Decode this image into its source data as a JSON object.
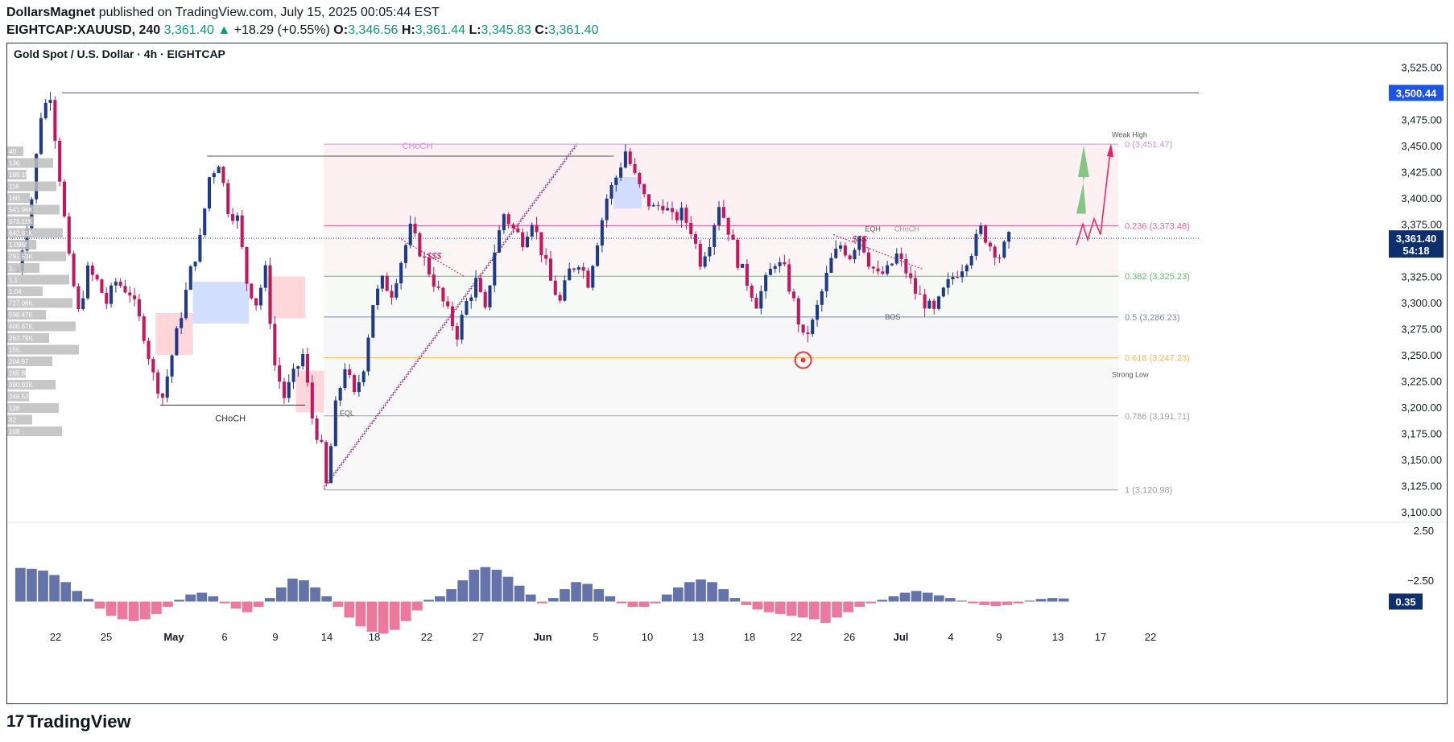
{
  "header": {
    "author": "DollarsMagnet",
    "published": "published on TradingView.com, July 15, 2025 00:05:44 EST",
    "symbol_interval": "EIGHTCAP:XAUUSD, 240",
    "last": "3,361.40",
    "change": "+18.29 (+0.55%)",
    "o_label": "O:",
    "o": "3,346.56",
    "h_label": "H:",
    "h": "3,361.44",
    "l_label": "L:",
    "l": "3,345.83",
    "c_label": "C:",
    "c": "3,361.40"
  },
  "footer": {
    "logo_text": "TradingView"
  },
  "colors": {
    "up": "#1e3a8a",
    "down": "#c2185b",
    "accent": "#1e53e5",
    "fib_border": "#888888"
  },
  "chart_data": {
    "type": "candlestick",
    "title": "Gold Spot / U.S. Dollar · 4h · EIGHTCAP",
    "ylim": [
      3090,
      3540
    ],
    "y_ticks": [
      3100,
      3125,
      3150,
      3175,
      3200,
      3225,
      3250,
      3275,
      3300,
      3325,
      3350,
      3375,
      3400,
      3425,
      3450,
      3475,
      3500,
      3525
    ],
    "y_tick_labels": [
      "3,100.00",
      "3,125.00",
      "3,150.00",
      "3,175.00",
      "3,200.00",
      "3,225.00",
      "3,250.00",
      "3,275.00",
      "3,300.00",
      "3,325.00",
      "3,350.00",
      "3,375.00",
      "3,400.00",
      "3,425.00",
      "3,450.00",
      "3,475.00",
      "3,500.00",
      "3,525.00"
    ],
    "x_labels": [
      "22",
      "25",
      "May",
      "6",
      "9",
      "14",
      "18",
      "22",
      "27",
      "Jun",
      "5",
      "10",
      "13",
      "18",
      "22",
      "26",
      "Jul",
      "4",
      "9",
      "13",
      "17",
      "22"
    ],
    "price_labels": {
      "high_line": "3,500.44",
      "last": "3,361.40",
      "countdown": "54:18"
    },
    "price_path": [
      [
        0,
        3330
      ],
      [
        3,
        3400
      ],
      [
        5,
        3480
      ],
      [
        7,
        3500
      ],
      [
        9,
        3420
      ],
      [
        11,
        3340
      ],
      [
        13,
        3290
      ],
      [
        15,
        3330
      ],
      [
        17,
        3320
      ],
      [
        19,
        3300
      ],
      [
        21,
        3320
      ],
      [
        24,
        3310
      ],
      [
        27,
        3270
      ],
      [
        29,
        3230
      ],
      [
        31,
        3210
      ],
      [
        33,
        3250
      ],
      [
        35,
        3290
      ],
      [
        37,
        3330
      ],
      [
        39,
        3360
      ],
      [
        41,
        3420
      ],
      [
        43,
        3435
      ],
      [
        45,
        3390
      ],
      [
        47,
        3380
      ],
      [
        49,
        3320
      ],
      [
        51,
        3300
      ],
      [
        53,
        3330
      ],
      [
        55,
        3240
      ],
      [
        57,
        3210
      ],
      [
        59,
        3230
      ],
      [
        61,
        3250
      ],
      [
        63,
        3190
      ],
      [
        65,
        3160
      ],
      [
        66,
        3125
      ],
      [
        68,
        3200
      ],
      [
        70,
        3240
      ],
      [
        72,
        3210
      ],
      [
        74,
        3240
      ],
      [
        76,
        3300
      ],
      [
        78,
        3320
      ],
      [
        80,
        3310
      ],
      [
        82,
        3340
      ],
      [
        84,
        3370
      ],
      [
        86,
        3350
      ],
      [
        88,
        3330
      ],
      [
        90,
        3310
      ],
      [
        92,
        3290
      ],
      [
        94,
        3270
      ],
      [
        96,
        3300
      ],
      [
        98,
        3320
      ],
      [
        100,
        3290
      ],
      [
        102,
        3350
      ],
      [
        104,
        3385
      ],
      [
        106,
        3370
      ],
      [
        108,
        3360
      ],
      [
        110,
        3380
      ],
      [
        112,
        3350
      ],
      [
        114,
        3320
      ],
      [
        116,
        3300
      ],
      [
        118,
        3330
      ],
      [
        120,
        3340
      ],
      [
        122,
        3320
      ],
      [
        124,
        3360
      ],
      [
        126,
        3400
      ],
      [
        128,
        3420
      ],
      [
        130,
        3445
      ],
      [
        132,
        3420
      ],
      [
        134,
        3400
      ],
      [
        136,
        3390
      ],
      [
        138,
        3395
      ],
      [
        140,
        3380
      ],
      [
        142,
        3385
      ],
      [
        144,
        3370
      ],
      [
        146,
        3340
      ],
      [
        148,
        3360
      ],
      [
        150,
        3395
      ],
      [
        152,
        3370
      ],
      [
        154,
        3340
      ],
      [
        156,
        3320
      ],
      [
        158,
        3300
      ],
      [
        160,
        3320
      ],
      [
        162,
        3340
      ],
      [
        164,
        3330
      ],
      [
        166,
        3300
      ],
      [
        168,
        3265
      ],
      [
        170,
        3280
      ],
      [
        172,
        3310
      ],
      [
        174,
        3340
      ],
      [
        176,
        3355
      ],
      [
        178,
        3345
      ],
      [
        180,
        3365
      ],
      [
        182,
        3340
      ],
      [
        184,
        3325
      ],
      [
        186,
        3330
      ],
      [
        188,
        3345
      ],
      [
        190,
        3330
      ],
      [
        192,
        3310
      ],
      [
        194,
        3300
      ],
      [
        196,
        3290
      ],
      [
        198,
        3310
      ],
      [
        200,
        3325
      ],
      [
        202,
        3335
      ],
      [
        204,
        3350
      ],
      [
        206,
        3370
      ],
      [
        208,
        3355
      ],
      [
        210,
        3345
      ],
      [
        212,
        3361
      ]
    ],
    "fib_levels": [
      {
        "ratio": "0",
        "price": 3451.47,
        "label": "0 (3,451.47)",
        "color": "#ce93d8"
      },
      {
        "ratio": "0.236",
        "price": 3373.48,
        "label": "0.236 (3,373.48)",
        "color": "#f06292"
      },
      {
        "ratio": "0.382",
        "price": 3325.23,
        "label": "0.382 (3,325.23)",
        "color": "#66bb6a"
      },
      {
        "ratio": "0.5",
        "price": 3286.23,
        "label": "0.5 (3,286.23)",
        "color": "#7986cb"
      },
      {
        "ratio": "0.618",
        "price": 3247.23,
        "label": "0.618 (3,247.23)",
        "color": "#ffb74d"
      },
      {
        "ratio": "0.786",
        "price": 3191.71,
        "label": "0.786 (3,191.71)",
        "color": "#9e9e9e"
      },
      {
        "ratio": "1",
        "price": 3120.98,
        "label": "1 (3,120.98)",
        "color": "#9e9e9e"
      }
    ],
    "annotations": {
      "choch_top": "CHoCH",
      "choch_low": "CHoCH",
      "choch_right": "CHoCH",
      "weak_high": "Weak High",
      "strong_low": "Strong Low",
      "eqh": "EQH",
      "eql": "EQL",
      "bos": "BOS",
      "liq1": "$$$",
      "liq2": "$$$"
    },
    "volume_profile": [
      "40",
      "136.",
      "189.15",
      "116",
      "160.",
      "541.96K",
      "573.11K",
      "642.61K",
      "1.09M",
      "791.53K",
      "1.",
      "1.1",
      "1.04",
      "727.08K",
      "598.47K",
      "400.67K",
      "263.76K",
      "155.",
      "204.97",
      "265.88K",
      "390.92K",
      "248.52K",
      "126",
      "82",
      "108"
    ],
    "oscillator": {
      "y_ticks": [
        "2.50",
        "−2.50"
      ],
      "last": "0.35",
      "values": [
        3.8,
        3.7,
        3.5,
        3.0,
        2.2,
        1.2,
        0.3,
        -0.8,
        -1.6,
        -2.0,
        -2.2,
        -2.0,
        -1.4,
        -0.6,
        0.2,
        0.8,
        1.0,
        0.6,
        -0.2,
        -0.8,
        -1.2,
        -0.6,
        0.4,
        1.6,
        2.6,
        2.4,
        1.6,
        0.6,
        -0.6,
        -1.8,
        -2.8,
        -3.4,
        -3.6,
        -3.2,
        -2.2,
        -1.0,
        0.2,
        0.6,
        1.4,
        2.4,
        3.6,
        3.9,
        3.6,
        2.8,
        1.8,
        0.8,
        -0.2,
        0.4,
        1.4,
        2.2,
        2.0,
        1.4,
        0.6,
        -0.2,
        -0.6,
        -0.6,
        -0.2,
        0.8,
        1.6,
        2.2,
        2.5,
        2.2,
        1.4,
        0.4,
        -0.4,
        -0.9,
        -1.2,
        -1.4,
        -1.6,
        -1.8,
        -2.0,
        -2.4,
        -1.8,
        -1.2,
        -0.6,
        -0.2,
        0.2,
        0.6,
        1.0,
        1.2,
        1.0,
        0.7,
        0.4,
        0.1,
        -0.2,
        -0.4,
        -0.5,
        -0.4,
        -0.2,
        0.1,
        0.3,
        0.4,
        0.35
      ]
    },
    "grid": false
  }
}
